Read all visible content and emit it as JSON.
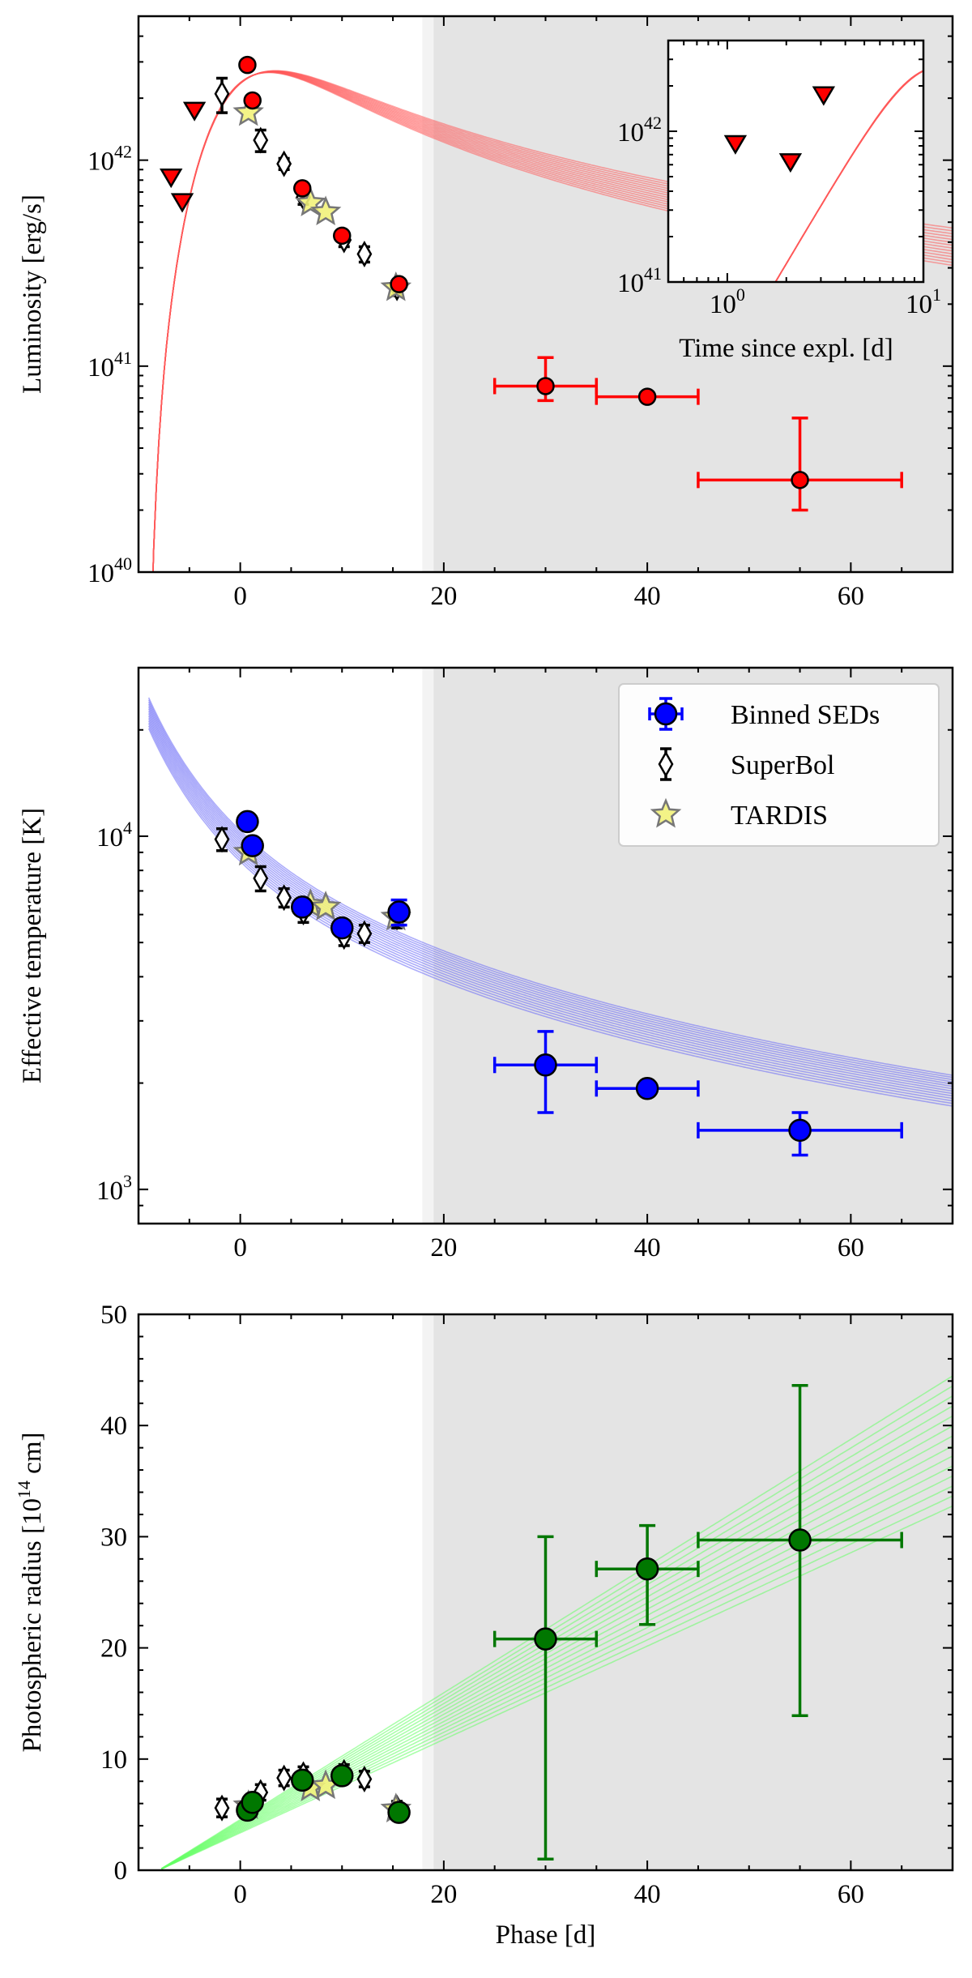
{
  "colors": {
    "luminosity_model": "#ff5a5a",
    "luminosity_points": "#ff0000",
    "temperature_model": "#6a6af5",
    "temperature_points": "#0000ff",
    "radius_model": "#66ff66",
    "radius_points": "#007700",
    "tardis_star": "#f2f27a",
    "shade": "#e4e4e4"
  },
  "legend": {
    "binned": "Binned SEDs",
    "superbol": "SuperBol",
    "tardis": "TARDIS"
  },
  "chart_data": [
    {
      "id": "luminosity",
      "type": "scatter",
      "scale": "log",
      "ylabel": "Luminosity [erg/s]",
      "xlabel": "",
      "xlim": [
        -10,
        70
      ],
      "ylim": [
        1e+40,
        5e+42
      ],
      "xticks": [
        0,
        20,
        40,
        60
      ],
      "xtick_labels": [
        "0",
        "20",
        "40",
        "60"
      ],
      "ytick_decades": [
        {
          "value": 1e+40,
          "base": "10",
          "exp": "40"
        },
        {
          "value": 1e+41,
          "base": "10",
          "exp": "41"
        },
        {
          "value": 1e+42,
          "base": "10",
          "exp": "42"
        }
      ],
      "shaded_from_x": 19,
      "model": {
        "type": "diffusion",
        "t0": -9.2,
        "peak_x": 1.4,
        "peak": 2.6e+42,
        "decline_exp": 1.3,
        "n_lines": 14
      },
      "binned": [
        {
          "x": 0.7,
          "y": 2.9e+42,
          "xerr": 0,
          "ylo": 2.9e+42,
          "yhi": 2.9e+42
        },
        {
          "x": 1.2,
          "y": 1.95e+42,
          "xerr": 0,
          "ylo": 1.95e+42,
          "yhi": 1.95e+42
        },
        {
          "x": 6.1,
          "y": 7.3e+41,
          "xerr": 0,
          "ylo": 7.3e+41,
          "yhi": 7.3e+41
        },
        {
          "x": 10.0,
          "y": 4.3e+41,
          "xerr": 0,
          "ylo": 4.3e+41,
          "yhi": 4.3e+41
        },
        {
          "x": 15.6,
          "y": 2.5e+41,
          "xerr": 0,
          "ylo": 2.5e+41,
          "yhi": 2.5e+41
        },
        {
          "x": 30,
          "y": 8e+40,
          "xerr": 5,
          "ylo": 6.8e+40,
          "yhi": 1.1e+41
        },
        {
          "x": 40,
          "y": 7.1e+40,
          "xerr": 5,
          "ylo": 7.1e+40,
          "yhi": 7.1e+40
        },
        {
          "x": 55,
          "y": 2.8e+40,
          "xerr": 10,
          "ylo": 2e+40,
          "yhi": 5.6e+40
        }
      ],
      "upper_limits": [
        {
          "x": -6.8,
          "y": 8.3e+41
        },
        {
          "x": -5.7,
          "y": 6.3e+41
        },
        {
          "x": -4.5,
          "y": 1.75e+42
        }
      ],
      "superbol": [
        {
          "x": -1.8,
          "y": 2.1e+42,
          "ylo": 1.7e+42,
          "yhi": 2.5e+42
        },
        {
          "x": 2.0,
          "y": 1.25e+42,
          "ylo": 1.1e+42,
          "yhi": 1.4e+42
        },
        {
          "x": 4.3,
          "y": 9.6e+41,
          "ylo": 9e+41,
          "yhi": 1.02e+42
        },
        {
          "x": 6.2,
          "y": 6.6e+41,
          "ylo": 6.1e+41,
          "yhi": 7.1e+41
        },
        {
          "x": 10.2,
          "y": 4.1e+41,
          "ylo": 3.8e+41,
          "yhi": 4.4e+41
        },
        {
          "x": 12.2,
          "y": 3.5e+41,
          "ylo": 3.2e+41,
          "yhi": 3.8e+41
        },
        {
          "x": 15.4,
          "y": 2.4e+41,
          "ylo": 2.2e+41,
          "yhi": 2.6e+41
        }
      ],
      "tardis": [
        {
          "x": 0.8,
          "y": 1.7e+42
        },
        {
          "x": 6.9,
          "y": 6.2e+41
        },
        {
          "x": 8.4,
          "y": 5.6e+41
        },
        {
          "x": 15.3,
          "y": 2.4e+41
        }
      ],
      "inset": {
        "xlabel": "Time since expl. [d]",
        "xlim": [
          0.5,
          10
        ],
        "ylim": [
          1e+41,
          4e+42
        ],
        "xtick_decades": [
          {
            "value": 1,
            "base": "10",
            "exp": "0"
          },
          {
            "value": 10,
            "base": "10",
            "exp": "1"
          }
        ],
        "ytick_decades": [
          {
            "value": 1e+41,
            "base": "10",
            "exp": "41"
          },
          {
            "value": 1e+42,
            "base": "10",
            "exp": "42"
          }
        ],
        "upper_limits": [
          {
            "x": 1.1,
            "y": 8.3e+41
          },
          {
            "x": 2.1,
            "y": 6.3e+41
          },
          {
            "x": 3.1,
            "y": 1.75e+42
          }
        ]
      }
    },
    {
      "id": "temperature",
      "type": "scatter",
      "scale": "log",
      "ylabel": "Effective temperature [K]",
      "xlabel": "",
      "xlim": [
        -10,
        70
      ],
      "ylim": [
        800,
        30000
      ],
      "xticks": [
        0,
        20,
        40,
        60
      ],
      "xtick_labels": [
        "0",
        "20",
        "40",
        "60"
      ],
      "ytick_decades": [
        {
          "value": 1000,
          "base": "10",
          "exp": "3"
        },
        {
          "value": 10000,
          "base": "10",
          "exp": "4"
        }
      ],
      "shaded_from_x": 19,
      "model": {
        "type": "cooling",
        "t0": -9.2,
        "T_inf": 600,
        "T_start": 18500,
        "k": 0.011,
        "n_lines": 14
      },
      "binned": [
        {
          "x": 0.7,
          "y": 11000,
          "xerr": 0,
          "ylo": 11000,
          "yhi": 11000
        },
        {
          "x": 1.2,
          "y": 9400,
          "xerr": 0,
          "ylo": 9400,
          "yhi": 9400
        },
        {
          "x": 6.1,
          "y": 6300,
          "xerr": 0,
          "ylo": 6300,
          "yhi": 6300
        },
        {
          "x": 10.0,
          "y": 5500,
          "xerr": 0,
          "ylo": 5500,
          "yhi": 5500
        },
        {
          "x": 15.6,
          "y": 6100,
          "xerr": 0,
          "ylo": 5600,
          "yhi": 6600
        },
        {
          "x": 30,
          "y": 2250,
          "xerr": 5,
          "ylo": 1650,
          "yhi": 2800
        },
        {
          "x": 40,
          "y": 1930,
          "xerr": 5,
          "ylo": 1930,
          "yhi": 1930
        },
        {
          "x": 55,
          "y": 1470,
          "xerr": 10,
          "ylo": 1250,
          "yhi": 1650
        }
      ],
      "superbol": [
        {
          "x": -1.8,
          "y": 9800,
          "ylo": 9100,
          "yhi": 10500
        },
        {
          "x": 2.0,
          "y": 7600,
          "ylo": 7000,
          "yhi": 8200
        },
        {
          "x": 4.3,
          "y": 6700,
          "ylo": 6300,
          "yhi": 7100
        },
        {
          "x": 6.2,
          "y": 6100,
          "ylo": 5700,
          "yhi": 6500
        },
        {
          "x": 10.2,
          "y": 5200,
          "ylo": 4900,
          "yhi": 5500
        },
        {
          "x": 12.2,
          "y": 5300,
          "ylo": 5000,
          "yhi": 5600
        },
        {
          "x": 15.4,
          "y": 5900,
          "ylo": 5500,
          "yhi": 6300
        }
      ],
      "tardis": [
        {
          "x": 0.8,
          "y": 9000
        },
        {
          "x": 6.9,
          "y": 6400
        },
        {
          "x": 8.4,
          "y": 6300
        },
        {
          "x": 15.3,
          "y": 5900
        }
      ]
    },
    {
      "id": "radius",
      "type": "scatter",
      "scale": "linear",
      "ylabel": "Photospheric radius [10",
      "ylabel_exp": "14",
      "ylabel_tail": " cm]",
      "xlabel": "Phase [d]",
      "xlim": [
        -10,
        70
      ],
      "ylim": [
        0,
        50
      ],
      "xticks": [
        0,
        20,
        40,
        60
      ],
      "xtick_labels": [
        "0",
        "20",
        "40",
        "60"
      ],
      "yticks": [
        0,
        10,
        20,
        30,
        40,
        50
      ],
      "ytick_labels": [
        "0",
        "10",
        "20",
        "30",
        "40",
        "50"
      ],
      "shaded_from_x": 19,
      "model": {
        "type": "linear",
        "t0": -8,
        "slope_lo": 0.42,
        "slope_hi": 0.57,
        "n_lines": 14
      },
      "binned": [
        {
          "x": 0.7,
          "y": 5.4,
          "xerr": 0,
          "ylo": 5.4,
          "yhi": 5.4
        },
        {
          "x": 1.2,
          "y": 6.1,
          "xerr": 0,
          "ylo": 6.1,
          "yhi": 6.1
        },
        {
          "x": 6.1,
          "y": 8.1,
          "xerr": 0,
          "ylo": 8.1,
          "yhi": 8.1
        },
        {
          "x": 10.0,
          "y": 8.5,
          "xerr": 0,
          "ylo": 8.5,
          "yhi": 8.5
        },
        {
          "x": 15.6,
          "y": 5.2,
          "xerr": 0,
          "ylo": 5.2,
          "yhi": 5.2
        },
        {
          "x": 30,
          "y": 20.8,
          "xerr": 5,
          "ylo": 1.0,
          "yhi": 30.0
        },
        {
          "x": 40,
          "y": 27.1,
          "xerr": 5,
          "ylo": 22.1,
          "yhi": 31.0
        },
        {
          "x": 55,
          "y": 29.7,
          "xerr": 10,
          "ylo": 13.9,
          "yhi": 43.6
        }
      ],
      "superbol": [
        {
          "x": -1.8,
          "y": 5.6,
          "ylo": 4.8,
          "yhi": 6.4
        },
        {
          "x": 2.0,
          "y": 7.0,
          "ylo": 6.3,
          "yhi": 7.7
        },
        {
          "x": 4.3,
          "y": 8.3,
          "ylo": 7.6,
          "yhi": 9.0
        },
        {
          "x": 6.2,
          "y": 8.6,
          "ylo": 7.9,
          "yhi": 9.3
        },
        {
          "x": 10.2,
          "y": 8.8,
          "ylo": 8.1,
          "yhi": 9.5
        },
        {
          "x": 12.2,
          "y": 8.2,
          "ylo": 7.5,
          "yhi": 8.9
        },
        {
          "x": 15.4,
          "y": 5.6,
          "ylo": 5.0,
          "yhi": 6.2
        }
      ],
      "tardis": [
        {
          "x": 0.8,
          "y": 5.8
        },
        {
          "x": 6.9,
          "y": 7.4
        },
        {
          "x": 8.4,
          "y": 7.6
        },
        {
          "x": 15.3,
          "y": 5.5
        }
      ]
    }
  ]
}
